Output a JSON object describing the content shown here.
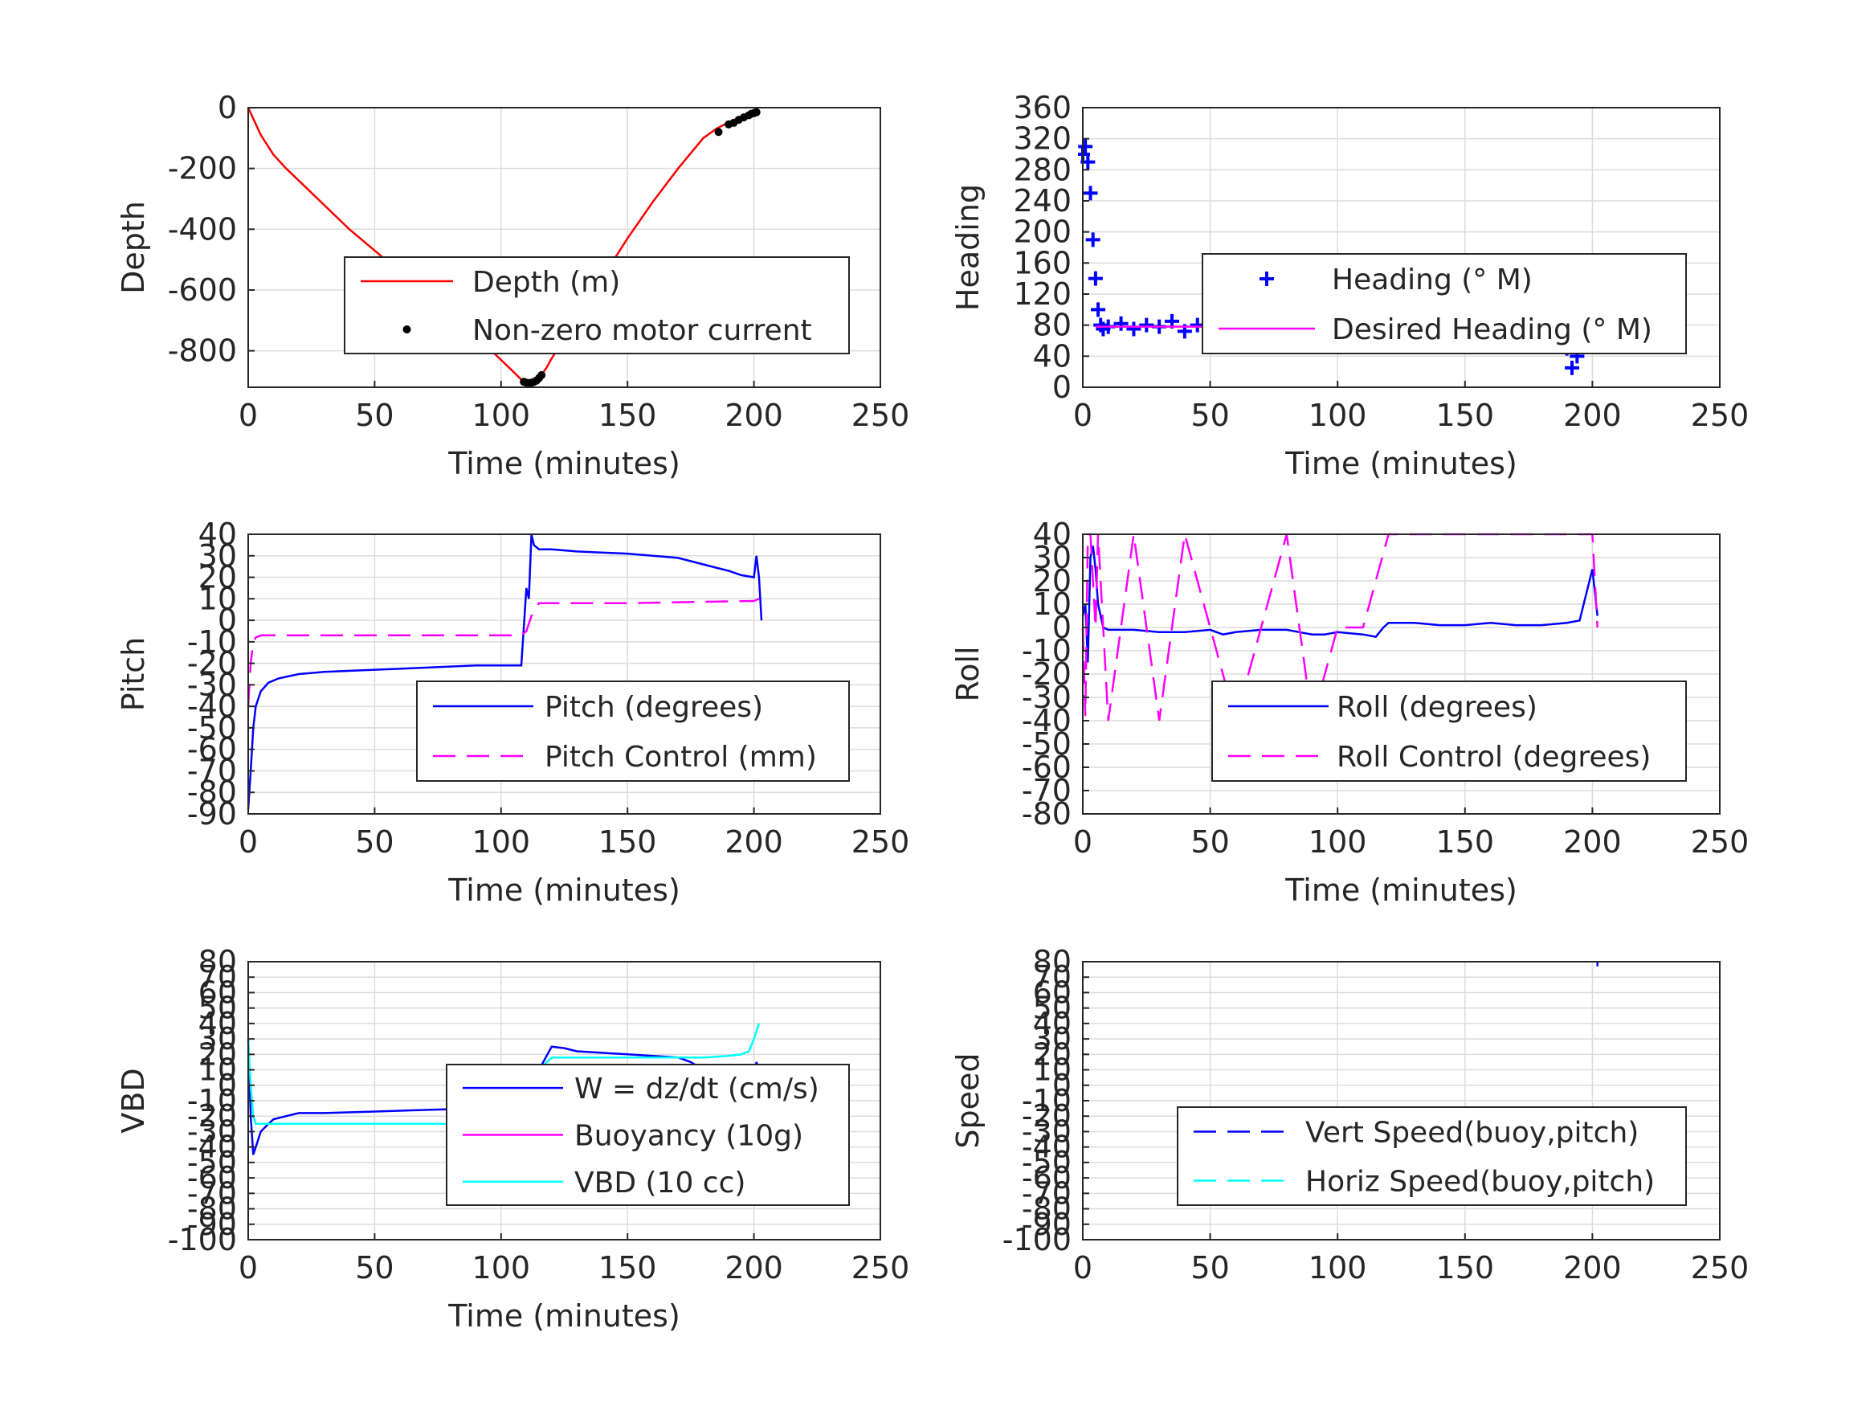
{
  "chart_data": [
    {
      "type": "line",
      "ylabel": "Depth",
      "xlabel": "Time (minutes)",
      "xlim": [
        0,
        250
      ],
      "ylim": [
        -920,
        0
      ],
      "xticks": [
        0,
        50,
        100,
        150,
        200,
        250
      ],
      "xtick_labels": [
        "0",
        "50",
        "100",
        "150",
        "200",
        "250"
      ],
      "yticks": [
        0,
        -200,
        -400,
        -600,
        -800
      ],
      "ytick_labels": [
        "0",
        "-200",
        "-400",
        "-600",
        "-800"
      ],
      "grid": true,
      "legend_position": "center-right",
      "series": [
        {
          "name": "Depth (m)",
          "color": "#ff0000",
          "style": "solid",
          "marker": "none",
          "x": [
            0,
            5,
            10,
            15,
            20,
            30,
            40,
            50,
            60,
            70,
            80,
            90,
            100,
            105,
            108,
            110,
            112,
            114,
            116,
            118,
            120,
            125,
            130,
            140,
            150,
            160,
            170,
            180,
            185,
            190,
            195,
            200,
            202
          ],
          "y": [
            0,
            -90,
            -155,
            -200,
            -240,
            -320,
            -400,
            -470,
            -540,
            -610,
            -680,
            -750,
            -830,
            -870,
            -895,
            -905,
            -905,
            -895,
            -880,
            -855,
            -825,
            -760,
            -690,
            -560,
            -430,
            -310,
            -200,
            -100,
            -70,
            -48,
            -30,
            -15,
            -8
          ]
        },
        {
          "name": "Non-zero motor current",
          "color": "#000000",
          "style": "none",
          "marker": "dot",
          "x": [
            109,
            110,
            111,
            112,
            113,
            114,
            115,
            116,
            186,
            190,
            192,
            194,
            196,
            198,
            199,
            200,
            201
          ],
          "y": [
            -902,
            -905,
            -906,
            -905,
            -902,
            -898,
            -890,
            -880,
            -80,
            -55,
            -50,
            -40,
            -32,
            -25,
            -20,
            -18,
            -15
          ]
        }
      ]
    },
    {
      "type": "scatter",
      "ylabel": "Heading",
      "xlabel": "Time (minutes)",
      "xlim": [
        0,
        250
      ],
      "ylim": [
        0,
        360
      ],
      "xticks": [
        0,
        50,
        100,
        150,
        200,
        250
      ],
      "xtick_labels": [
        "0",
        "50",
        "100",
        "150",
        "200",
        "250"
      ],
      "yticks": [
        0,
        40,
        80,
        120,
        160,
        200,
        240,
        280,
        320,
        360
      ],
      "ytick_labels": [
        "0",
        "40",
        "80",
        "120",
        "160",
        "200",
        "240",
        "280",
        "320",
        "360"
      ],
      "grid": true,
      "legend_position": "center-right",
      "series": [
        {
          "name": "Heading (° M)",
          "color": "#0000ff",
          "style": "none",
          "marker": "plus",
          "x": [
            0,
            1,
            2,
            3,
            4,
            5,
            6,
            7,
            8,
            10,
            15,
            20,
            25,
            30,
            35,
            40,
            45,
            50,
            55,
            60,
            65,
            70,
            75,
            80,
            85,
            90,
            95,
            100,
            105,
            110,
            115,
            120,
            125,
            130,
            135,
            140,
            145,
            150,
            155,
            160,
            165,
            170,
            175,
            180,
            185,
            188,
            190,
            192,
            194,
            196,
            198,
            200,
            202
          ],
          "y": [
            300,
            310,
            290,
            250,
            190,
            140,
            100,
            80,
            75,
            78,
            82,
            75,
            80,
            78,
            85,
            72,
            80,
            85,
            78,
            82,
            76,
            80,
            85,
            90,
            110,
            78,
            75,
            80,
            95,
            105,
            115,
            95,
            80,
            78,
            85,
            75,
            70,
            72,
            80,
            75,
            78,
            82,
            75,
            80,
            90,
            70,
            50,
            25,
            40,
            60,
            75,
            65,
            80
          ]
        },
        {
          "name": "Desired Heading (° M)",
          "color": "#ff00ff",
          "style": "solid",
          "marker": "none",
          "x": [
            5,
            50,
            100,
            150,
            202
          ],
          "y": [
            78,
            78,
            78,
            78,
            78
          ]
        }
      ]
    },
    {
      "type": "line",
      "ylabel": "Pitch",
      "xlabel": "Time (minutes)",
      "xlim": [
        0,
        250
      ],
      "ylim": [
        -90,
        40
      ],
      "xticks": [
        0,
        50,
        100,
        150,
        200,
        250
      ],
      "xtick_labels": [
        "0",
        "50",
        "100",
        "150",
        "200",
        "250"
      ],
      "yticks": [
        -90,
        -80,
        -70,
        -60,
        -50,
        -40,
        -30,
        -20,
        -10,
        0,
        10,
        20,
        30,
        40
      ],
      "ytick_labels": [
        "-90",
        "-80",
        "-70",
        "-60",
        "-50",
        "-40",
        "-30",
        "-20",
        "-10",
        "0",
        "10",
        "20",
        "30",
        "40"
      ],
      "grid": true,
      "legend_position": "lower-right",
      "series": [
        {
          "name": "Pitch (degrees)",
          "color": "#0000ff",
          "style": "solid",
          "marker": "none",
          "x": [
            0,
            1,
            2,
            3,
            5,
            8,
            12,
            20,
            30,
            50,
            70,
            90,
            100,
            105,
            108,
            110,
            111,
            112,
            113,
            115,
            120,
            130,
            150,
            170,
            180,
            190,
            195,
            200,
            201,
            202,
            203
          ],
          "y": [
            -88,
            -70,
            -50,
            -40,
            -33,
            -29,
            -27,
            -25,
            -24,
            -23,
            -22,
            -21,
            -21,
            -21,
            -21,
            15,
            10,
            40,
            35,
            33,
            33,
            32,
            31,
            29,
            26,
            23,
            21,
            20,
            30,
            20,
            0
          ]
        },
        {
          "name": "Pitch Control (mm)",
          "color": "#ff00ff",
          "style": "dashed",
          "marker": "none",
          "x": [
            0,
            1,
            2,
            3,
            5,
            10,
            50,
            100,
            108,
            110,
            112,
            115,
            150,
            200,
            202
          ],
          "y": [
            -40,
            -20,
            -10,
            -8,
            -7,
            -7,
            -7,
            -7,
            -7,
            -5,
            2,
            8,
            8,
            9,
            10
          ]
        }
      ]
    },
    {
      "type": "line",
      "ylabel": "Roll",
      "xlabel": "Time (minutes)",
      "xlim": [
        0,
        250
      ],
      "ylim": [
        -80,
        40
      ],
      "xticks": [
        0,
        50,
        100,
        150,
        200,
        250
      ],
      "xtick_labels": [
        "0",
        "50",
        "100",
        "150",
        "200",
        "250"
      ],
      "yticks": [
        -80,
        -70,
        -60,
        -50,
        -40,
        -30,
        -20,
        -10,
        0,
        10,
        20,
        30,
        40
      ],
      "ytick_labels": [
        "-80",
        "-70",
        "-60",
        "-50",
        "-40",
        "-30",
        "-20",
        "-10",
        "0",
        "10",
        "20",
        "30",
        "40"
      ],
      "grid": true,
      "legend_position": "lower-right",
      "series": [
        {
          "name": "Roll (degrees)",
          "color": "#0000ff",
          "style": "solid",
          "marker": "none",
          "x": [
            0,
            1,
            2,
            3,
            4,
            5,
            6,
            8,
            10,
            20,
            30,
            40,
            50,
            55,
            60,
            70,
            80,
            85,
            90,
            95,
            100,
            110,
            115,
            118,
            120,
            130,
            140,
            150,
            160,
            170,
            180,
            190,
            195,
            200,
            202
          ],
          "y": [
            5,
            10,
            -15,
            30,
            35,
            25,
            10,
            0,
            -1,
            -1,
            -2,
            -2,
            -1,
            -3,
            -2,
            -1,
            -1,
            -2,
            -3,
            -3,
            -2,
            -3,
            -4,
            0,
            2,
            2,
            1,
            1,
            2,
            1,
            1,
            2,
            3,
            25,
            5
          ]
        },
        {
          "name": "Roll Control (degrees)",
          "color": "#ff00ff",
          "style": "dashed",
          "marker": "none",
          "x": [
            0,
            1,
            2,
            3,
            5,
            6,
            8,
            10,
            20,
            30,
            40,
            50,
            60,
            70,
            80,
            90,
            100,
            110,
            120,
            130,
            140,
            150,
            160,
            170,
            180,
            190,
            200,
            202
          ],
          "y": [
            0,
            -38,
            40,
            40,
            0,
            40,
            0,
            -40,
            40,
            -40,
            40,
            0,
            -40,
            0,
            40,
            -40,
            0,
            0,
            40,
            40,
            40,
            40,
            40,
            40,
            40,
            40,
            40,
            0
          ]
        }
      ]
    },
    {
      "type": "line",
      "ylabel": "VBD",
      "xlabel": "Time (minutes)",
      "xlim": [
        0,
        250
      ],
      "ylim": [
        -100,
        80
      ],
      "xticks": [
        0,
        50,
        100,
        150,
        200,
        250
      ],
      "xtick_labels": [
        "0",
        "50",
        "100",
        "150",
        "200",
        "250"
      ],
      "yticks": [
        -100,
        -90,
        -80,
        -70,
        -60,
        -50,
        -40,
        -30,
        -20,
        -10,
        0,
        10,
        20,
        30,
        40,
        50,
        60,
        70,
        80
      ],
      "ytick_labels": [
        "-100",
        "-90",
        "-80",
        "-70",
        "-60",
        "-50",
        "-40",
        "-30",
        "-20",
        "-10",
        "0",
        "10",
        "20",
        "30",
        "40",
        "50",
        "60",
        "70",
        "80"
      ],
      "grid": true,
      "legend_position": "center-right",
      "series": [
        {
          "name": "W = dz/dt (cm/s)",
          "color": "#0000ff",
          "style": "solid",
          "marker": "none",
          "x": [
            0,
            1,
            2,
            3,
            5,
            8,
            10,
            15,
            20,
            30,
            50,
            70,
            90,
            100,
            105,
            110,
            115,
            120,
            125,
            130,
            140,
            150,
            160,
            170,
            175,
            180,
            185,
            190,
            195,
            200,
            201,
            202
          ],
          "y": [
            30,
            -20,
            -45,
            -40,
            -30,
            -25,
            -22,
            -20,
            -18,
            -18,
            -17,
            -16,
            -15,
            -16,
            -15,
            -14,
            10,
            25,
            24,
            22,
            21,
            20,
            19,
            18,
            15,
            10,
            8,
            7,
            7,
            6,
            15,
            10
          ]
        },
        {
          "name": "Buoyancy (10g)",
          "color": "#ff00ff",
          "style": "solid",
          "marker": "none",
          "x": [],
          "y": []
        },
        {
          "name": "VBD (10 cc)",
          "color": "#00ffff",
          "style": "solid",
          "marker": "none",
          "x": [
            0,
            1,
            2,
            3,
            5,
            10,
            50,
            100,
            108,
            110,
            112,
            115,
            120,
            150,
            180,
            190,
            195,
            198,
            200,
            201,
            202
          ],
          "y": [
            30,
            0,
            -20,
            -25,
            -25,
            -25,
            -25,
            -25,
            -25,
            -20,
            -5,
            10,
            18,
            18,
            18,
            19,
            20,
            22,
            30,
            35,
            40
          ]
        }
      ]
    },
    {
      "type": "line",
      "ylabel": "Speed",
      "xlabel": "",
      "xlim": [
        0,
        250
      ],
      "ylim": [
        -100,
        80
      ],
      "xticks": [
        0,
        50,
        100,
        150,
        200,
        250
      ],
      "xtick_labels": [
        "0",
        "50",
        "100",
        "150",
        "200",
        "250"
      ],
      "yticks": [
        -100,
        -90,
        -80,
        -70,
        -60,
        -50,
        -40,
        -30,
        -20,
        -10,
        0,
        10,
        20,
        30,
        40,
        50,
        60,
        70,
        80
      ],
      "ytick_labels": [
        "-100",
        "-90",
        "-80",
        "-70",
        "-60",
        "-50",
        "-40",
        "-30",
        "-20",
        "-10",
        "0",
        "10",
        "20",
        "30",
        "40",
        "50",
        "60",
        "70",
        "80"
      ],
      "grid": true,
      "legend_position": "lower-right",
      "series": [
        {
          "name": "Vert Speed(buoy,pitch)",
          "color": "#0000ff",
          "style": "dashed",
          "marker": "none",
          "x": [
            202,
            202
          ],
          "y": [
            77,
            80
          ]
        },
        {
          "name": "Horiz Speed(buoy,pitch)",
          "color": "#00ffff",
          "style": "dashed",
          "marker": "none",
          "x": [],
          "y": []
        }
      ]
    }
  ]
}
